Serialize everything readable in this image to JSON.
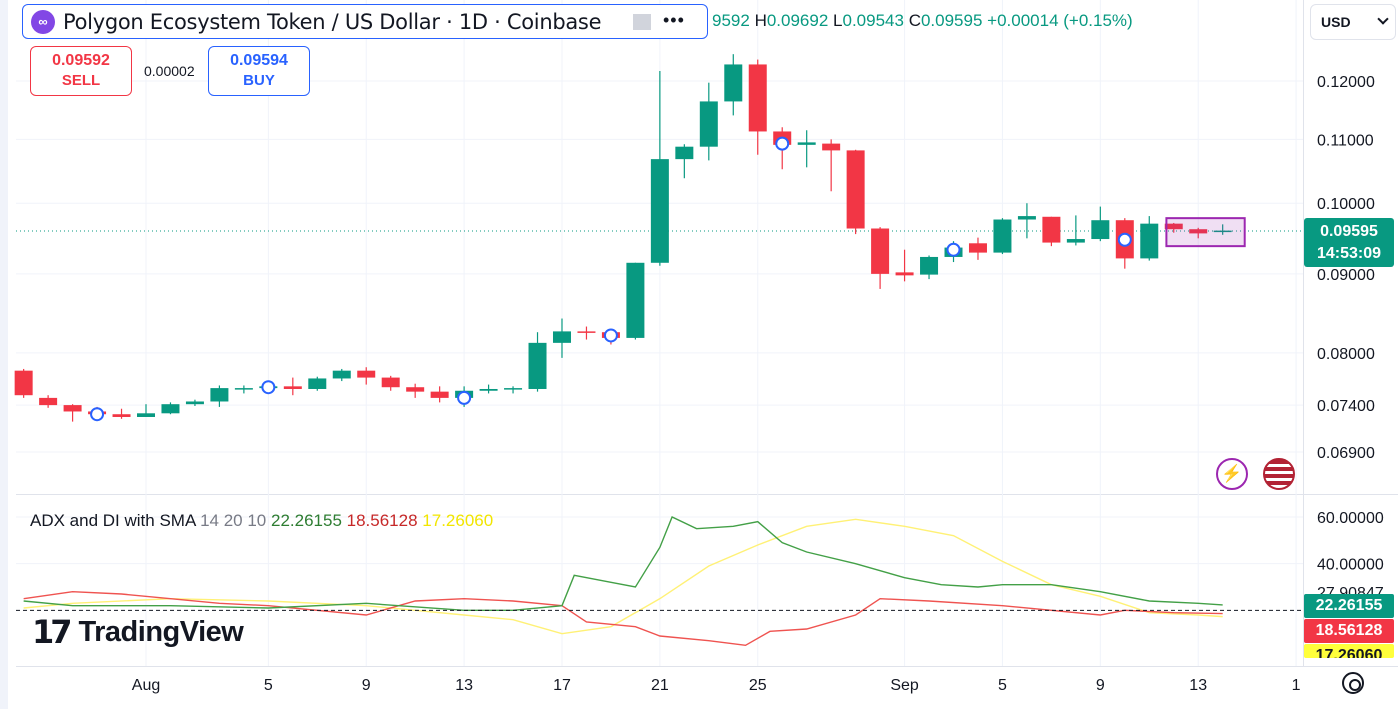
{
  "header": {
    "symbol_title": "Polygon Ecosystem Token / US Dollar · 1D · Coinbase",
    "logo_glyph": "∞",
    "more_glyph": "•••",
    "ohlc": {
      "o_label": "",
      "o": "9592",
      "h_label": "H",
      "h": "0.09692",
      "l_label": "L",
      "l": "0.09543",
      "c_label": "C",
      "c": "0.09595",
      "change": "+0.00014 (+0.15%)"
    }
  },
  "trade": {
    "sell_price": "0.09592",
    "sell_label": "SELL",
    "spread": "0.00002",
    "buy_price": "0.09594",
    "buy_label": "BUY"
  },
  "currency": {
    "label": "USD"
  },
  "price_tag": {
    "price": "0.09595",
    "countdown": "14:53:09"
  },
  "colors": {
    "up": "#089981",
    "down": "#f23645",
    "adx": "#4caf50",
    "diplus": "#e57373",
    "diminus": "#fff59d"
  },
  "icons": [
    "bolt-icon",
    "us-flag-icon",
    "settings-icon"
  ],
  "watermark": {
    "text": "TradingView",
    "mark": "17"
  },
  "indicator": {
    "name": "ADX and DI with SMA",
    "params": "14 20 10",
    "v1": "22.26155",
    "v2": "18.56128",
    "v3": "17.26060",
    "axis_labels": [
      "60.00000",
      "40.00000",
      "27.90847"
    ]
  },
  "chart_data": {
    "type": "candlestick",
    "xaxis_labels": [
      {
        "label": "Aug",
        "day": 31
      },
      {
        "label": "5",
        "day": 36
      },
      {
        "label": "9",
        "day": 40
      },
      {
        "label": "13",
        "day": 44
      },
      {
        "label": "17",
        "day": 48
      },
      {
        "label": "21",
        "day": 52
      },
      {
        "label": "25",
        "day": 56
      },
      {
        "label": "Sep",
        "day": 62
      },
      {
        "label": "5",
        "day": 66
      },
      {
        "label": "9",
        "day": 70
      },
      {
        "label": "13",
        "day": 74
      },
      {
        "label": "1",
        "day": 78
      }
    ],
    "yaxis_labels": [
      "0.12000",
      "0.11000",
      "0.10000",
      "0.09000",
      "0.08000",
      "0.07400",
      "0.06900"
    ],
    "yticks": [
      0.12,
      0.11,
      0.1,
      0.09,
      0.08,
      0.074,
      0.069
    ],
    "candles": [
      {
        "d": 26,
        "o": 0.0779,
        "h": 0.0781,
        "l": 0.0748,
        "c": 0.0751
      },
      {
        "d": 27,
        "o": 0.0748,
        "h": 0.0751,
        "l": 0.0737,
        "c": 0.074
      },
      {
        "d": 28,
        "o": 0.074,
        "h": 0.0741,
        "l": 0.0722,
        "c": 0.0733
      },
      {
        "d": 29,
        "o": 0.0733,
        "h": 0.0738,
        "l": 0.0725,
        "c": 0.073
      },
      {
        "d": 30,
        "o": 0.073,
        "h": 0.0736,
        "l": 0.0725,
        "c": 0.0727
      },
      {
        "d": 31,
        "o": 0.0727,
        "h": 0.0741,
        "l": 0.0727,
        "c": 0.0731
      },
      {
        "d": 32,
        "o": 0.0731,
        "h": 0.0743,
        "l": 0.073,
        "c": 0.0741
      },
      {
        "d": 33,
        "o": 0.0741,
        "h": 0.0746,
        "l": 0.0739,
        "c": 0.0744
      },
      {
        "d": 34,
        "o": 0.0744,
        "h": 0.0762,
        "l": 0.0738,
        "c": 0.0759
      },
      {
        "d": 35,
        "o": 0.0759,
        "h": 0.0762,
        "l": 0.0753,
        "c": 0.0759
      },
      {
        "d": 36,
        "o": 0.0759,
        "h": 0.0767,
        "l": 0.0756,
        "c": 0.0761
      },
      {
        "d": 37,
        "o": 0.0761,
        "h": 0.0771,
        "l": 0.0751,
        "c": 0.0758
      },
      {
        "d": 38,
        "o": 0.0758,
        "h": 0.0772,
        "l": 0.0756,
        "c": 0.077
      },
      {
        "d": 39,
        "o": 0.077,
        "h": 0.0781,
        "l": 0.0767,
        "c": 0.0779
      },
      {
        "d": 40,
        "o": 0.0779,
        "h": 0.0783,
        "l": 0.0763,
        "c": 0.0771
      },
      {
        "d": 41,
        "o": 0.0771,
        "h": 0.0773,
        "l": 0.0756,
        "c": 0.076
      },
      {
        "d": 42,
        "o": 0.076,
        "h": 0.0764,
        "l": 0.0748,
        "c": 0.0755
      },
      {
        "d": 43,
        "o": 0.0755,
        "h": 0.0761,
        "l": 0.0743,
        "c": 0.0748
      },
      {
        "d": 44,
        "o": 0.0748,
        "h": 0.0761,
        "l": 0.0738,
        "c": 0.0756
      },
      {
        "d": 45,
        "o": 0.0756,
        "h": 0.0763,
        "l": 0.0753,
        "c": 0.0758
      },
      {
        "d": 46,
        "o": 0.0758,
        "h": 0.0761,
        "l": 0.0753,
        "c": 0.0759
      },
      {
        "d": 47,
        "o": 0.0758,
        "h": 0.0825,
        "l": 0.0755,
        "c": 0.0812
      },
      {
        "d": 48,
        "o": 0.0812,
        "h": 0.0842,
        "l": 0.0794,
        "c": 0.0826
      },
      {
        "d": 49,
        "o": 0.0826,
        "h": 0.0832,
        "l": 0.0816,
        "c": 0.0825
      },
      {
        "d": 50,
        "o": 0.0825,
        "h": 0.0828,
        "l": 0.081,
        "c": 0.0818
      },
      {
        "d": 51,
        "o": 0.0818,
        "h": 0.0915,
        "l": 0.0816,
        "c": 0.0915
      },
      {
        "d": 52,
        "o": 0.0915,
        "h": 0.1218,
        "l": 0.0911,
        "c": 0.1068
      },
      {
        "d": 53,
        "o": 0.1068,
        "h": 0.1092,
        "l": 0.1038,
        "c": 0.1088
      },
      {
        "d": 54,
        "o": 0.1088,
        "h": 0.1197,
        "l": 0.1066,
        "c": 0.1164
      },
      {
        "d": 55,
        "o": 0.1164,
        "h": 0.1249,
        "l": 0.114,
        "c": 0.123
      },
      {
        "d": 56,
        "o": 0.123,
        "h": 0.1239,
        "l": 0.1075,
        "c": 0.1113
      },
      {
        "d": 57,
        "o": 0.1113,
        "h": 0.112,
        "l": 0.1052,
        "c": 0.1091
      },
      {
        "d": 58,
        "o": 0.1091,
        "h": 0.1115,
        "l": 0.1055,
        "c": 0.1095
      },
      {
        "d": 59,
        "o": 0.1093,
        "h": 0.11,
        "l": 0.1018,
        "c": 0.1082
      },
      {
        "d": 60,
        "o": 0.1082,
        "h": 0.1083,
        "l": 0.0955,
        "c": 0.0963
      },
      {
        "d": 61,
        "o": 0.0963,
        "h": 0.0965,
        "l": 0.088,
        "c": 0.09
      },
      {
        "d": 62,
        "o": 0.0902,
        "h": 0.0933,
        "l": 0.089,
        "c": 0.0898
      },
      {
        "d": 63,
        "o": 0.0899,
        "h": 0.0925,
        "l": 0.0893,
        "c": 0.0923
      },
      {
        "d": 64,
        "o": 0.0923,
        "h": 0.0945,
        "l": 0.0916,
        "c": 0.0936
      },
      {
        "d": 65,
        "o": 0.0942,
        "h": 0.095,
        "l": 0.0919,
        "c": 0.0929
      },
      {
        "d": 66,
        "o": 0.0929,
        "h": 0.0978,
        "l": 0.0927,
        "c": 0.0976
      },
      {
        "d": 67,
        "o": 0.0976,
        "h": 0.1,
        "l": 0.0949,
        "c": 0.0981
      },
      {
        "d": 68,
        "o": 0.098,
        "h": 0.098,
        "l": 0.0938,
        "c": 0.0943
      },
      {
        "d": 69,
        "o": 0.0943,
        "h": 0.0982,
        "l": 0.0939,
        "c": 0.0948
      },
      {
        "d": 70,
        "o": 0.0948,
        "h": 0.0995,
        "l": 0.0945,
        "c": 0.0975
      },
      {
        "d": 71,
        "o": 0.0975,
        "h": 0.0978,
        "l": 0.0907,
        "c": 0.0921
      },
      {
        "d": 72,
        "o": 0.0921,
        "h": 0.0981,
        "l": 0.0918,
        "c": 0.097
      },
      {
        "d": 73,
        "o": 0.097,
        "h": 0.0971,
        "l": 0.0957,
        "c": 0.0962
      },
      {
        "d": 74,
        "o": 0.0962,
        "h": 0.0964,
        "l": 0.0949,
        "c": 0.0956
      },
      {
        "d": 75,
        "o": 0.0959,
        "h": 0.0969,
        "l": 0.0954,
        "c": 0.096
      }
    ],
    "markers": [
      {
        "d": 29,
        "p": 0.073
      },
      {
        "d": 36,
        "p": 0.076
      },
      {
        "d": 44,
        "p": 0.0748
      },
      {
        "d": 50,
        "p": 0.0821
      },
      {
        "d": 57,
        "p": 0.1093
      },
      {
        "d": 64,
        "p": 0.0933
      },
      {
        "d": 71,
        "p": 0.0947
      }
    ],
    "current_price": 0.09595,
    "adx": [
      {
        "d": 26,
        "v": 24
      },
      {
        "d": 28,
        "v": 22
      },
      {
        "d": 32,
        "v": 22
      },
      {
        "d": 36,
        "v": 21
      },
      {
        "d": 40,
        "v": 23
      },
      {
        "d": 44,
        "v": 20
      },
      {
        "d": 46,
        "v": 20
      },
      {
        "d": 48,
        "v": 22
      },
      {
        "d": 48.5,
        "v": 35
      },
      {
        "d": 50,
        "v": 32
      },
      {
        "d": 51,
        "v": 30
      },
      {
        "d": 52,
        "v": 47
      },
      {
        "d": 52.5,
        "v": 60
      },
      {
        "d": 53.5,
        "v": 55
      },
      {
        "d": 55,
        "v": 56
      },
      {
        "d": 56,
        "v": 58
      },
      {
        "d": 57,
        "v": 49
      },
      {
        "d": 58,
        "v": 45
      },
      {
        "d": 60,
        "v": 40
      },
      {
        "d": 62,
        "v": 34
      },
      {
        "d": 63.5,
        "v": 31
      },
      {
        "d": 65,
        "v": 30
      },
      {
        "d": 66,
        "v": 31
      },
      {
        "d": 68,
        "v": 31
      },
      {
        "d": 70,
        "v": 28
      },
      {
        "d": 72,
        "v": 24
      },
      {
        "d": 74,
        "v": 23
      },
      {
        "d": 75,
        "v": 22.3
      }
    ],
    "di_plus": [
      {
        "d": 26,
        "v": 25
      },
      {
        "d": 28,
        "v": 28
      },
      {
        "d": 30,
        "v": 27
      },
      {
        "d": 34,
        "v": 23
      },
      {
        "d": 36,
        "v": 22
      },
      {
        "d": 40,
        "v": 18
      },
      {
        "d": 42,
        "v": 24
      },
      {
        "d": 44,
        "v": 25
      },
      {
        "d": 46,
        "v": 24
      },
      {
        "d": 48,
        "v": 22
      },
      {
        "d": 49,
        "v": 15
      },
      {
        "d": 51,
        "v": 13
      },
      {
        "d": 52,
        "v": 9
      },
      {
        "d": 54,
        "v": 7
      },
      {
        "d": 55.5,
        "v": 5
      },
      {
        "d": 56.5,
        "v": 11
      },
      {
        "d": 58,
        "v": 12
      },
      {
        "d": 60,
        "v": 18
      },
      {
        "d": 61,
        "v": 25
      },
      {
        "d": 63,
        "v": 24
      },
      {
        "d": 66,
        "v": 22
      },
      {
        "d": 70,
        "v": 18
      },
      {
        "d": 71,
        "v": 20
      },
      {
        "d": 73,
        "v": 19
      },
      {
        "d": 75,
        "v": 18.6
      }
    ],
    "di_minus": [
      {
        "d": 26,
        "v": 21
      },
      {
        "d": 28,
        "v": 23
      },
      {
        "d": 32,
        "v": 25
      },
      {
        "d": 36,
        "v": 24
      },
      {
        "d": 40,
        "v": 22
      },
      {
        "d": 44,
        "v": 18
      },
      {
        "d": 46,
        "v": 16
      },
      {
        "d": 48,
        "v": 10
      },
      {
        "d": 50,
        "v": 13
      },
      {
        "d": 52,
        "v": 25
      },
      {
        "d": 54,
        "v": 39
      },
      {
        "d": 56,
        "v": 48
      },
      {
        "d": 58,
        "v": 56
      },
      {
        "d": 60,
        "v": 59
      },
      {
        "d": 62,
        "v": 56
      },
      {
        "d": 64,
        "v": 52
      },
      {
        "d": 66,
        "v": 41
      },
      {
        "d": 68,
        "v": 31
      },
      {
        "d": 70,
        "v": 26
      },
      {
        "d": 72,
        "v": 19
      },
      {
        "d": 74,
        "v": 18
      },
      {
        "d": 75,
        "v": 17.3
      }
    ],
    "indicator_ylim": [
      0,
      70
    ]
  }
}
